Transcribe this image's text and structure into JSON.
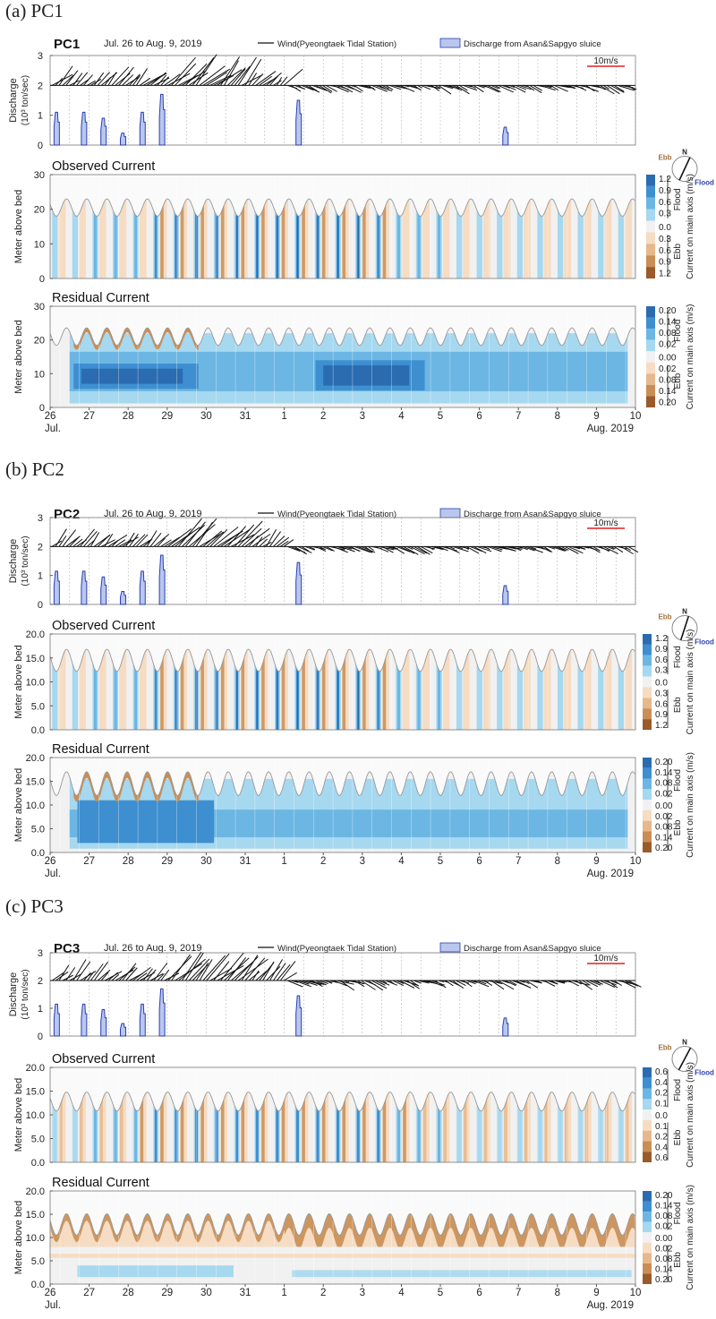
{
  "panels": [
    {
      "tag": "(a)  PC1",
      "station": "PC1",
      "period": "Jul. 26 to Aug. 9, 2019",
      "legend_wind": "Wind(Pyeongtaek Tidal Station)",
      "legend_discharge": "Discharge from Asan&Sapgyo sluice",
      "scale_bar_label": "10m/s",
      "discharge_ylabel_1": "Discharge",
      "discharge_ylabel_2": "(10³ ton/sec)",
      "observed_title": "Observed Current",
      "residual_title": "Residual Current",
      "depth_ylabel": "Meter above bed",
      "compass": {
        "n": "N",
        "ebb": "Ebb",
        "flood": "Flood"
      },
      "cb_flood": "Flood",
      "cb_ebb": "Ebb",
      "cb_axis": "Current on main axis (m/s)",
      "obs_flood_ticks": [
        "1.2",
        "0.9",
        "0.6",
        "0.3"
      ],
      "obs_zero": "0.0",
      "obs_ebb_ticks": [
        "0.3",
        "0.6",
        "0.9",
        "1.2"
      ],
      "res_flood_ticks": [
        "0.20",
        "0.14",
        "0.08",
        "0.02"
      ],
      "res_zero": "0.00",
      "res_ebb_ticks": [
        "0.02",
        "0.08",
        "0.14",
        "0.20"
      ],
      "discharge_yticks": [
        "3",
        "2",
        "1",
        "0"
      ],
      "depth_yticks": [
        "30",
        "20",
        "10",
        "0"
      ],
      "x_ticks": [
        "26",
        "27",
        "28",
        "29",
        "30",
        "31",
        "1",
        "2",
        "3",
        "4",
        "5",
        "6",
        "7",
        "8",
        "9",
        "10"
      ],
      "x_start_label": "Jul.",
      "x_end_label": "Aug. 2019"
    },
    {
      "tag": "(b)  PC2",
      "station": "PC2",
      "period": "Jul. 26 to Aug. 9, 2019",
      "legend_wind": "Wind(Pyeongtaek Tidal Station)",
      "legend_discharge": "Discharge from Asan&Sapgyo sluice",
      "scale_bar_label": "10m/s",
      "discharge_ylabel_1": "Discharge",
      "discharge_ylabel_2": "(10³ ton/sec)",
      "observed_title": "Observed Current",
      "residual_title": "Residual Current",
      "depth_ylabel": "Meter above bed",
      "compass": {
        "n": "N",
        "ebb": "Ebb",
        "flood": "Flood"
      },
      "cb_flood": "Flood",
      "cb_ebb": "Ebb",
      "cb_axis": "Current on main axis (m/s)",
      "obs_flood_ticks": [
        "1.2",
        "0.9",
        "0.6",
        "0.3"
      ],
      "obs_zero": "0.0",
      "obs_ebb_ticks": [
        "0.3",
        "0.6",
        "0.9",
        "1.2"
      ],
      "res_flood_ticks": [
        "0.20",
        "0.14",
        "0.08",
        "0.02"
      ],
      "res_zero": "0.00",
      "res_ebb_ticks": [
        "0.02",
        "0.08",
        "0.14",
        "0.20"
      ],
      "discharge_yticks": [
        "3",
        "2",
        "1",
        "0"
      ],
      "depth_yticks": [
        "20.0",
        "15.0",
        "10.0",
        "5.0",
        "0.0"
      ],
      "x_ticks": [
        "26",
        "27",
        "28",
        "29",
        "30",
        "31",
        "1",
        "2",
        "3",
        "4",
        "5",
        "6",
        "7",
        "8",
        "9",
        "10"
      ],
      "x_start_label": "Jul.",
      "x_end_label": "Aug. 2019"
    },
    {
      "tag": "(c)  PC3",
      "station": "PC3",
      "period": "Jul. 26 to Aug. 9, 2019",
      "legend_wind": "Wind(Pyeongtaek Tidal Station)",
      "legend_discharge": "Discharge from Asan&Sapgyo sluice",
      "scale_bar_label": "10m/s",
      "discharge_ylabel_1": "Discharge",
      "discharge_ylabel_2": "(10³ ton/sec)",
      "observed_title": "Observed Current",
      "residual_title": "Residual Current",
      "depth_ylabel": "Meter above bed",
      "compass": {
        "n": "N",
        "ebb": "Ebb",
        "flood": "Flood"
      },
      "cb_flood": "Flood",
      "cb_ebb": "Ebb",
      "cb_axis": "Current on main axis (m/s)",
      "obs_flood_ticks": [
        "0.6",
        "0.4",
        "0.2",
        "0.1"
      ],
      "obs_zero": "0.0",
      "obs_ebb_ticks": [
        "0.1",
        "0.2",
        "0.4",
        "0.6"
      ],
      "res_flood_ticks": [
        "0.20",
        "0.14",
        "0.08",
        "0.02"
      ],
      "res_zero": "0.00",
      "res_ebb_ticks": [
        "0.02",
        "0.08",
        "0.14",
        "0.20"
      ],
      "discharge_yticks": [
        "3",
        "2",
        "1",
        "0"
      ],
      "depth_yticks": [
        "20.0",
        "15.0",
        "10.0",
        "5.0",
        "0.0"
      ],
      "x_ticks": [
        "26",
        "27",
        "28",
        "29",
        "30",
        "31",
        "1",
        "2",
        "3",
        "4",
        "5",
        "6",
        "7",
        "8",
        "9",
        "10"
      ],
      "x_start_label": "Jul.",
      "x_end_label": "Aug. 2019"
    }
  ],
  "colors": {
    "flood": [
      "#2b6cb0",
      "#3e8fd0",
      "#6cb6e4",
      "#a6d8f0"
    ],
    "ebb": [
      "#f6dcc2",
      "#e6b88c",
      "#c98e55",
      "#9a5a2a"
    ],
    "zero": "#f1f1f1",
    "discharge_fill": "#b9c7ee",
    "discharge_line": "#2a3fb0",
    "scale_bar": "#e02020",
    "ebb_label": "#a0703a",
    "flood_label": "#2a3fb0"
  },
  "chart_data": [
    {
      "type": "area",
      "station": "PC1",
      "x_unit": "day (Jul. 26 – Aug. 10, 2019)",
      "discharge": {
        "ylim": [
          0,
          3
        ],
        "pulses": [
          [
            26.1,
            1.1
          ],
          [
            26.8,
            1.1
          ],
          [
            27.3,
            0.9
          ],
          [
            27.8,
            0.4
          ],
          [
            28.3,
            1.1
          ],
          [
            28.8,
            1.7
          ],
          [
            32.3,
            1.5
          ],
          [
            37.6,
            0.6
          ]
        ]
      },
      "observed": {
        "ylim": [
          0,
          30
        ],
        "surface_mean": 20.5,
        "surface_amp": 2.5,
        "max_flood": 1.2,
        "max_ebb": 1.2
      },
      "residual": {
        "ylim": [
          0,
          30
        ],
        "surface_mean": 21,
        "surface_amp": 2.6,
        "max_flood": 0.2
      }
    },
    {
      "type": "area",
      "station": "PC2",
      "x_unit": "day (Jul. 26 – Aug. 10, 2019)",
      "discharge": {
        "ylim": [
          0,
          3
        ],
        "pulses": [
          [
            26.1,
            1.15
          ],
          [
            26.8,
            1.15
          ],
          [
            27.3,
            0.95
          ],
          [
            27.8,
            0.45
          ],
          [
            28.3,
            1.15
          ],
          [
            28.8,
            1.7
          ],
          [
            32.3,
            1.45
          ],
          [
            37.6,
            0.65
          ]
        ]
      },
      "observed": {
        "ylim": [
          0,
          20
        ],
        "surface_mean": 14.5,
        "surface_amp": 2.3,
        "max_flood": 1.2,
        "max_ebb": 1.2
      },
      "residual": {
        "ylim": [
          0,
          20
        ],
        "surface_mean": 14.5,
        "surface_amp": 2.5,
        "max_flood": 0.2
      }
    },
    {
      "type": "area",
      "station": "PC3",
      "x_unit": "day (Jul. 26 – Aug. 10, 2019)",
      "discharge": {
        "ylim": [
          0,
          3
        ],
        "pulses": [
          [
            26.1,
            1.15
          ],
          [
            26.8,
            1.15
          ],
          [
            27.3,
            0.95
          ],
          [
            27.8,
            0.45
          ],
          [
            28.3,
            1.15
          ],
          [
            28.8,
            1.7
          ],
          [
            32.3,
            1.45
          ],
          [
            37.6,
            0.65
          ]
        ]
      },
      "observed": {
        "ylim": [
          0,
          20
        ],
        "surface_mean": 12.8,
        "surface_amp": 2.0,
        "max_flood": 0.6,
        "max_ebb": 0.6
      },
      "residual": {
        "ylim": [
          0,
          20
        ],
        "surface_mean": 12.8,
        "surface_amp": 2.3,
        "max_flood": 0.2,
        "max_ebb": 0.2
      }
    }
  ]
}
